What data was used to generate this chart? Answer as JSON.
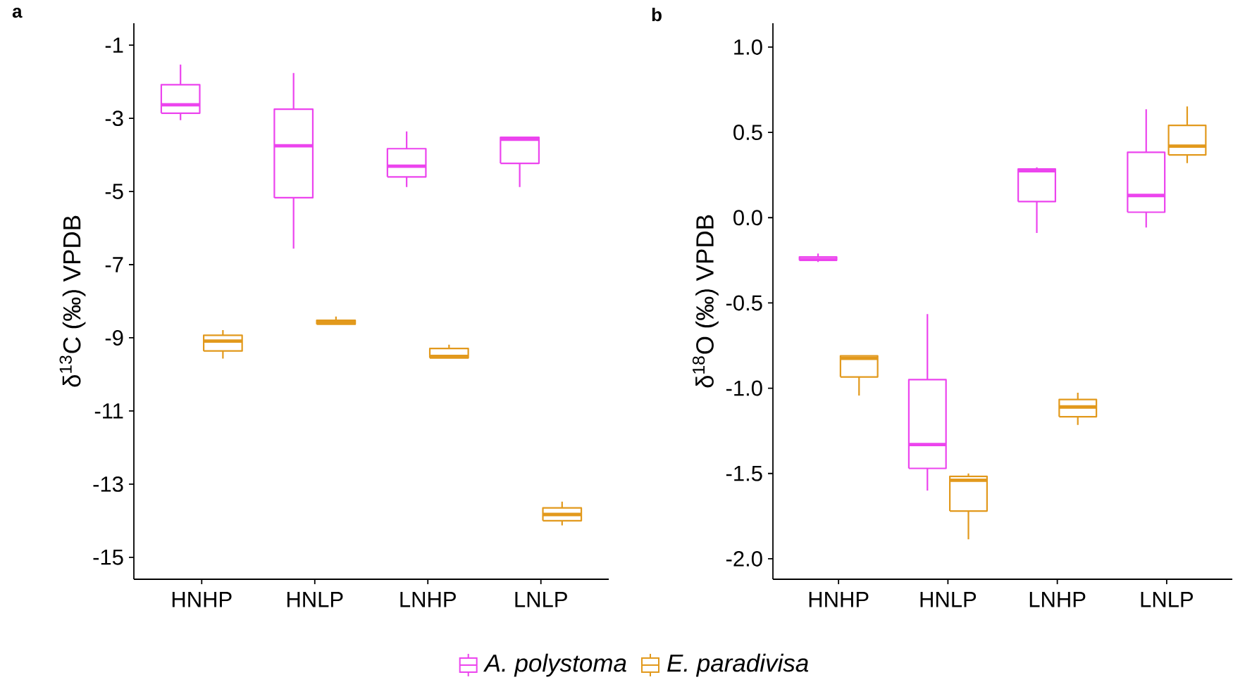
{
  "chart_data": [
    {
      "type": "box",
      "title": "a",
      "ylabel": "δ$^{13}$C (‰) VPDB",
      "categories": [
        "HNHP",
        "HNLP",
        "LNHP",
        "LNLP"
      ],
      "ylim": [
        -15.6,
        -0.4
      ],
      "yticks": [
        -1,
        -3,
        -5,
        -7,
        -9,
        -11,
        -13,
        -15
      ],
      "legend": "bottom",
      "series": [
        {
          "name": "A. polystoma",
          "color": "#ec44ee",
          "boxes": [
            {
              "low": -3.05,
              "q1": -2.86,
              "median": -2.63,
              "q3": -2.08,
              "high": -1.53
            },
            {
              "low": -6.56,
              "q1": -5.17,
              "median": -3.75,
              "q3": -2.75,
              "high": -1.76
            },
            {
              "low": -4.88,
              "q1": -4.6,
              "median": -4.31,
              "q3": -3.83,
              "high": -3.36
            },
            {
              "low": -4.88,
              "q1": -4.23,
              "median": -3.57,
              "q3": -3.52,
              "high": -3.52
            }
          ]
        },
        {
          "name": "E. paradivisa",
          "color": "#e2991c",
          "boxes": [
            {
              "low": -9.57,
              "q1": -9.36,
              "median": -9.09,
              "q3": -8.93,
              "high": -8.79
            },
            {
              "low": -8.63,
              "q1": -8.63,
              "median": -8.57,
              "q3": -8.52,
              "high": -8.42
            },
            {
              "low": -9.55,
              "q1": -9.55,
              "median": -9.51,
              "q3": -9.29,
              "high": -9.19
            },
            {
              "low": -14.13,
              "q1": -14.0,
              "median": -13.83,
              "q3": -13.65,
              "high": -13.48
            }
          ]
        }
      ]
    },
    {
      "type": "box",
      "title": "b",
      "ylabel": "δ$^{18}$O (‰) VPDB",
      "categories": [
        "HNHP",
        "HNLP",
        "LNHP",
        "LNLP"
      ],
      "ylim": [
        -2.12,
        1.14
      ],
      "yticks": [
        {
          "value": 1.0,
          "label": "1.0"
        },
        0.5,
        {
          "value": 0.0,
          "label": "0.0"
        },
        -0.5,
        {
          "value": -1.0,
          "label": "-1.0"
        },
        -1.5,
        {
          "value": -2.0,
          "label": "-2.0"
        }
      ],
      "series": [
        {
          "color": "#ec44ee",
          "boxes": [
            {
              "low": -0.26,
              "q1": -0.25,
              "median": -0.245,
              "q3": -0.23,
              "high": -0.21
            },
            {
              "low": -1.6,
              "q1": -1.47,
              "median": -1.33,
              "q3": -0.95,
              "high": -0.565
            },
            {
              "low": -0.09,
              "q1": 0.094,
              "median": 0.275,
              "q3": 0.285,
              "high": 0.295
            },
            {
              "low": -0.058,
              "q1": 0.032,
              "median": 0.13,
              "q3": 0.383,
              "high": 0.635
            }
          ]
        },
        {
          "color": "#e2991c",
          "boxes": [
            {
              "low": -1.043,
              "q1": -0.934,
              "median": -0.825,
              "q3": -0.81,
              "high": -0.81
            },
            {
              "low": -1.886,
              "q1": -1.72,
              "median": -1.54,
              "q3": -1.517,
              "high": -1.5
            },
            {
              "low": -1.215,
              "q1": -1.167,
              "median": -1.11,
              "q3": -1.066,
              "high": -1.026
            },
            {
              "low": 0.32,
              "q1": 0.368,
              "median": 0.419,
              "q3": 0.541,
              "high": 0.652
            }
          ]
        }
      ]
    }
  ]
}
